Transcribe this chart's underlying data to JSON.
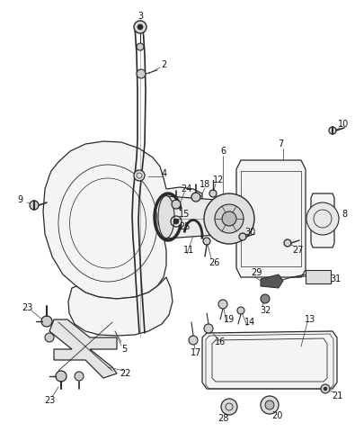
{
  "bg_color": "#ffffff",
  "line_color": "#2a2a2a",
  "label_color": "#111111",
  "gray_fill": "#e8e8e8",
  "light_fill": "#f4f4f4",
  "dark_fill": "#cccccc"
}
